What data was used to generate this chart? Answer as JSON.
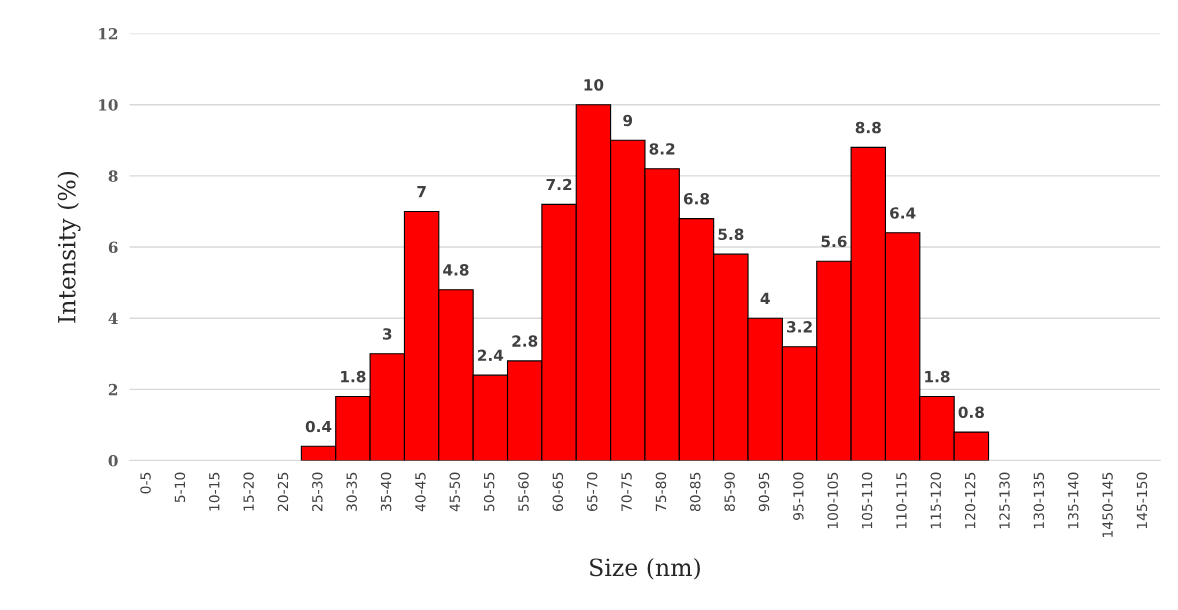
{
  "chart_data": {
    "type": "bar",
    "categories": [
      "0-5",
      "5-10",
      "10-15",
      "15-20",
      "20-25",
      "25-30",
      "30-35",
      "35-40",
      "40-45",
      "45-50",
      "50-55",
      "55-60",
      "60-65",
      "65-70",
      "70-75",
      "75-80",
      "80-85",
      "85-90",
      "90-95",
      "95-100",
      "100-105",
      "105-110",
      "110-115",
      "115-120",
      "120-125",
      "125-130",
      "130-135",
      "135-140",
      "1450-145",
      "145-150"
    ],
    "values": [
      0,
      0,
      0,
      0,
      0,
      0.4,
      1.8,
      3,
      7,
      4.8,
      2.4,
      2.8,
      7.2,
      10,
      9,
      8.2,
      6.8,
      5.8,
      4,
      3.2,
      5.6,
      8.8,
      6.4,
      1.8,
      0.8,
      0,
      0,
      0,
      0,
      0
    ],
    "value_labels": [
      null,
      null,
      null,
      null,
      null,
      "0.4",
      "1.8",
      "3",
      "7",
      "4.8",
      "2.4",
      "2.8",
      "7.2",
      "10",
      "9",
      "8.2",
      "6.8",
      "5.8",
      "4",
      "3.2",
      "5.6",
      "8.8",
      "6.4",
      "1.8",
      "0.8",
      null,
      null,
      null,
      null,
      null
    ],
    "color": "#ff0000",
    "xlabel": "Size (nm)",
    "ylabel": "Intensity (%)",
    "ylim": [
      0,
      12
    ],
    "yticks": [
      0,
      2,
      4,
      6,
      8,
      10,
      12
    ],
    "grid": "y"
  }
}
